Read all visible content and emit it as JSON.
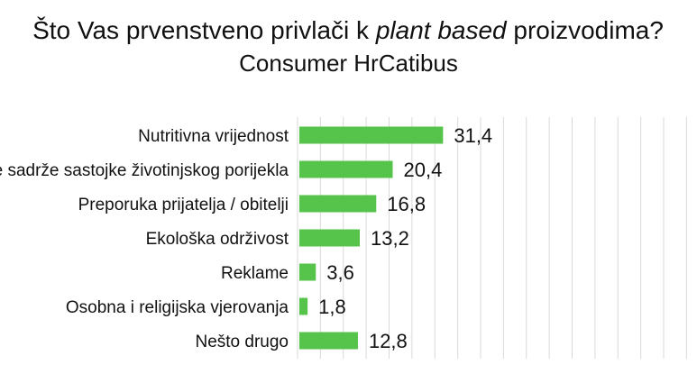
{
  "chart_data": {
    "type": "bar",
    "orientation": "horizontal",
    "title_prefix": "Što Vas prvenstveno privlači k ",
    "title_emphasis": "plant based",
    "title_suffix": " proizvodima?",
    "subtitle": "Consumer HrCatibus",
    "categories": [
      "Nutritivna vrijednost",
      "Ne sadrže sastojke životinjskog porijekla",
      "Preporuka prijatelja / obitelji",
      "Ekološka održivost",
      "Reklame",
      "Osobna i religijska vjerovanja",
      "Nešto drugo"
    ],
    "values": [
      31.4,
      20.4,
      16.8,
      13.2,
      3.6,
      1.8,
      12.8
    ],
    "value_labels": [
      "31,4",
      "20,4",
      "16,8",
      "13,2",
      "3,6",
      "1,8",
      "12,8"
    ],
    "xlim": [
      0,
      100
    ],
    "grid": true,
    "legend": "none",
    "bar_color": "#56c34a",
    "grid_color": "#d9d9d9"
  }
}
